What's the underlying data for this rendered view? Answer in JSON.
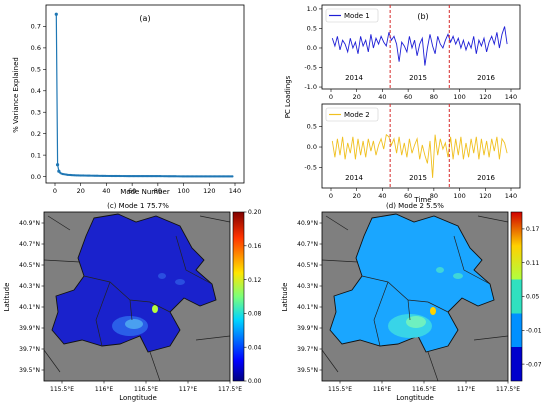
{
  "colors": {
    "variance_line": "#1f77b4",
    "mode1_line": "#1f1fd6",
    "mode2_line": "#f0c020",
    "year_divider": "#d62728",
    "map_background": "#7f7f7f",
    "district_border": "#2a2a2a"
  },
  "panel_a": {
    "label": "(a)",
    "xlabel": "Mode Number",
    "ylabel": "% Variance Explained",
    "xticks": [
      "0",
      "20",
      "40",
      "60",
      "80",
      "100",
      "120",
      "140"
    ],
    "yticks": [
      "0.0",
      "0.1",
      "0.2",
      "0.3",
      "0.4",
      "0.5",
      "0.6",
      "0.7"
    ]
  },
  "panel_b": {
    "label": "(b)",
    "ylabel": "PC Loadings",
    "xlabel": "Time",
    "mode1_legend": "Mode 1",
    "mode2_legend": "Mode 2",
    "years": [
      "2014",
      "2015",
      "2016"
    ],
    "top_yticks": [
      "1.0",
      "0.5",
      "0.0",
      "-0.5",
      "-1.0"
    ],
    "bottom_yticks": [
      "0.5",
      "0.0",
      "-0.5"
    ],
    "xticks": [
      "0",
      "20",
      "40",
      "60",
      "80",
      "100",
      "120",
      "140"
    ]
  },
  "panel_c": {
    "title": "(c)  Mode 1   75.7%",
    "xlabel": "Longtitude",
    "ylabel": "Latitude",
    "colorbar_ticks": [
      "0.20",
      "0.16",
      "0.12",
      "0.08",
      "0.04",
      "0.00"
    ]
  },
  "panel_d": {
    "title": "(d)  Mode 2   5.5%",
    "xlabel": "Longtitude",
    "ylabel": "Latitude",
    "colorbar_ticks": [
      "0.17",
      "0.11",
      "0.05",
      "-0.01",
      "-0.07"
    ]
  },
  "map_axes": {
    "lat_ticks": [
      "40.9°N",
      "40.7°N",
      "40.5°N",
      "40.3°N",
      "40.1°N",
      "39.9°N",
      "39.7°N",
      "39.5°N"
    ],
    "lon_ticks": [
      "115.5°E",
      "116°E",
      "116.5°E",
      "117°E",
      "117.5°E"
    ]
  },
  "chart_data": [
    {
      "type": "line",
      "title": "(a)",
      "xlabel": "Mode Number",
      "ylabel": "% Variance Explained",
      "xlim": [
        0,
        140
      ],
      "ylim": [
        0,
        0.8
      ],
      "x": [
        1,
        2,
        3,
        4,
        5,
        6,
        8,
        10,
        15,
        20,
        30,
        40,
        60,
        80,
        100,
        120,
        138
      ],
      "values": [
        0.757,
        0.055,
        0.025,
        0.018,
        0.014,
        0.012,
        0.01,
        0.008,
        0.006,
        0.005,
        0.004,
        0.003,
        0.002,
        0.002,
        0.001,
        0.001,
        0.001
      ]
    },
    {
      "type": "line",
      "title": "(b)",
      "xlabel": "Time",
      "ylabel": "PC Loadings",
      "xlim": [
        0,
        140
      ],
      "series": [
        {
          "name": "Mode 1",
          "ylim": [
            -1.0,
            1.0
          ],
          "x": [
            1,
            3,
            5,
            7,
            9,
            11,
            13,
            15,
            17,
            19,
            21,
            23,
            25,
            27,
            29,
            31,
            33,
            35,
            37,
            39,
            41,
            43,
            45,
            47,
            49,
            51,
            53,
            55,
            57,
            59,
            61,
            63,
            65,
            67,
            69,
            71,
            73,
            75,
            77,
            79,
            81,
            83,
            85,
            87,
            89,
            91,
            93,
            95,
            97,
            99,
            101,
            103,
            105,
            107,
            109,
            111,
            113,
            115,
            117,
            119,
            121,
            123,
            125,
            127,
            129,
            131,
            133,
            135,
            137
          ],
          "values": [
            0.25,
            0.05,
            0.3,
            -0.05,
            0.2,
            0.1,
            -0.1,
            0.25,
            0.0,
            0.15,
            -0.15,
            0.3,
            0.05,
            0.2,
            -0.1,
            0.35,
            0.0,
            0.25,
            0.1,
            0.3,
            0.15,
            0.05,
            0.4,
            0.2,
            0.3,
            0.1,
            -0.35,
            0.15,
            0.05,
            -0.1,
            0.3,
            0.0,
            0.2,
            -0.2,
            0.1,
            0.25,
            -0.45,
            0.0,
            0.35,
            0.05,
            -0.15,
            0.3,
            0.1,
            0.0,
            0.2,
            0.35,
            0.15,
            0.3,
            0.1,
            0.25,
            0.0,
            0.2,
            -0.05,
            0.15,
            0.0,
            0.3,
            -0.15,
            0.2,
            0.05,
            0.25,
            -0.1,
            0.15,
            0.3,
            0.1,
            0.4,
            0.0,
            0.35,
            0.55,
            0.1
          ]
        },
        {
          "name": "Mode 2",
          "ylim": [
            -1.0,
            1.0
          ],
          "x": [
            1,
            3,
            5,
            7,
            9,
            11,
            13,
            15,
            17,
            19,
            21,
            23,
            25,
            27,
            29,
            31,
            33,
            35,
            37,
            39,
            41,
            43,
            45,
            47,
            49,
            51,
            53,
            55,
            57,
            59,
            61,
            63,
            65,
            67,
            69,
            71,
            73,
            75,
            77,
            79,
            81,
            83,
            85,
            87,
            89,
            91,
            93,
            95,
            97,
            99,
            101,
            103,
            105,
            107,
            109,
            111,
            113,
            115,
            117,
            119,
            121,
            123,
            125,
            127,
            129,
            131,
            133,
            135,
            137
          ],
          "values": [
            0.15,
            -0.25,
            0.2,
            -0.2,
            0.25,
            -0.3,
            0.1,
            -0.15,
            0.25,
            -0.3,
            0.2,
            -0.2,
            0.15,
            -0.25,
            0.2,
            -0.1,
            0.15,
            -0.2,
            0.05,
            0.2,
            -0.05,
            0.3,
            0.25,
            0.05,
            0.2,
            -0.15,
            0.25,
            -0.2,
            0.1,
            -0.25,
            0.2,
            -0.15,
            0.05,
            0.2,
            -0.3,
            0.05,
            -0.2,
            -0.4,
            0.15,
            -0.75,
            0.3,
            -0.2,
            0.2,
            -0.05,
            0.1,
            -0.25,
            0.25,
            -0.3,
            0.2,
            -0.2,
            0.25,
            -0.3,
            0.1,
            -0.25,
            0.2,
            -0.15,
            0.25,
            -0.3,
            0.2,
            -0.2,
            0.15,
            -0.25,
            0.2,
            -0.1,
            0.25,
            -0.3,
            0.2,
            0.1,
            -0.15
          ]
        }
      ]
    },
    {
      "type": "heatmap",
      "title": "(c)  Mode 1   75.7%",
      "xlabel": "Longtitude",
      "ylabel": "Latitude",
      "colorbar_range": [
        0.0,
        0.2
      ],
      "colorbar_ticks": [
        0.0,
        0.04,
        0.08,
        0.12,
        0.16,
        0.2
      ]
    },
    {
      "type": "heatmap",
      "title": "(d)  Mode 2   5.5%",
      "xlabel": "Longtitude",
      "ylabel": "Latitude",
      "colorbar_range": [
        -0.1,
        0.2
      ],
      "colorbar_ticks": [
        -0.07,
        -0.01,
        0.05,
        0.11,
        0.17
      ]
    }
  ]
}
